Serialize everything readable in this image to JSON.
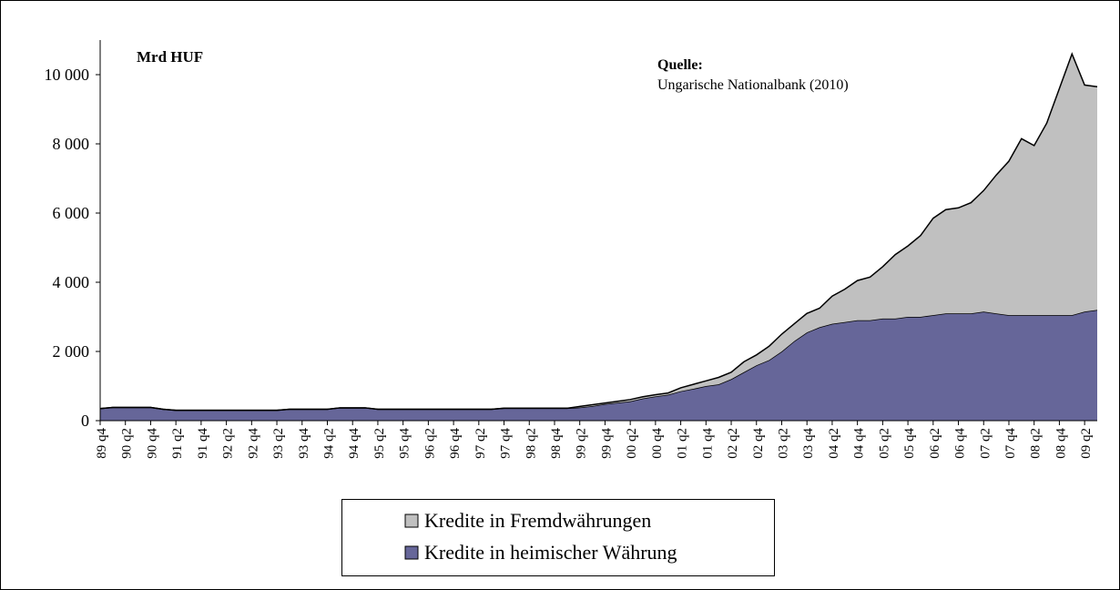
{
  "chart_data": {
    "type": "stacked_area",
    "annotations": [
      "Mrd HUF",
      "Quelle:",
      "Ungarische Nationalbank (2010)"
    ],
    "categories": [
      "89 q4",
      null,
      "90 q2",
      null,
      "90 q4",
      null,
      "91 q2",
      null,
      "91 q4",
      null,
      "92 q2",
      null,
      "92 q4",
      null,
      "93 q2",
      null,
      "93 q4",
      null,
      "94 q2",
      null,
      "94 q4",
      null,
      "95 q2",
      null,
      "95 q4",
      null,
      "96 q2",
      null,
      "96 q4",
      null,
      "97 q2",
      null,
      "97 q4",
      null,
      "98 q2",
      null,
      "98 q4",
      null,
      "99 q2",
      null,
      "99 q4",
      null,
      "00 q2",
      null,
      "00 q4",
      null,
      "01 q2",
      null,
      "01 q4",
      null,
      "02 q2",
      null,
      "02 q4",
      null,
      "03 q2",
      null,
      "03 q4",
      null,
      "04 q2",
      null,
      "04 q4",
      null,
      "05 q2",
      null,
      "05 q4",
      null,
      "06 q2",
      null,
      "06 q4",
      null,
      "07 q2",
      null,
      "07 q4",
      null,
      "08 q2",
      null,
      "08 q4",
      null,
      "09 q2",
      null
    ],
    "series": [
      {
        "name": "Kredite in heimischer Währung",
        "color": "#666699",
        "values": [
          350,
          380,
          380,
          380,
          380,
          330,
          300,
          300,
          300,
          300,
          300,
          300,
          300,
          300,
          300,
          330,
          330,
          330,
          330,
          370,
          370,
          370,
          330,
          330,
          330,
          330,
          330,
          330,
          330,
          330,
          330,
          330,
          360,
          360,
          360,
          360,
          360,
          360,
          380,
          420,
          480,
          520,
          560,
          640,
          700,
          750,
          850,
          920,
          1000,
          1050,
          1200,
          1400,
          1600,
          1750,
          2000,
          2300,
          2550,
          2700,
          2800,
          2850,
          2900,
          2900,
          2950,
          2950,
          3000,
          3000,
          3050,
          3100,
          3100,
          3100,
          3150,
          3100,
          3050,
          3050,
          3050,
          3050,
          3050,
          3050,
          3150,
          3200
        ]
      },
      {
        "name": "Kredite in Fremdwährungen",
        "color": "#c0c0c0",
        "values": [
          0,
          0,
          0,
          0,
          0,
          0,
          0,
          0,
          0,
          0,
          0,
          0,
          0,
          0,
          0,
          0,
          0,
          0,
          0,
          0,
          0,
          0,
          0,
          0,
          0,
          0,
          0,
          0,
          0,
          0,
          0,
          0,
          0,
          0,
          0,
          0,
          0,
          0,
          30,
          40,
          30,
          40,
          50,
          50,
          50,
          50,
          100,
          130,
          150,
          200,
          200,
          300,
          300,
          400,
          500,
          500,
          550,
          550,
          800,
          950,
          1150,
          1250,
          1500,
          1850,
          2050,
          2350,
          2800,
          3000,
          3050,
          3200,
          3500,
          4000,
          4450,
          5100,
          4900,
          5550,
          6550,
          7550,
          6550,
          6450
        ]
      }
    ],
    "ylim": [
      0,
      11000
    ],
    "yticks": [
      0,
      {
        "value": 2000,
        "label": "2 000"
      },
      {
        "value": 4000,
        "label": "4 000"
      },
      {
        "value": 6000,
        "label": "6 000"
      },
      {
        "value": 8000,
        "label": "8 000"
      },
      {
        "value": 10000,
        "label": "10 000"
      }
    ],
    "grid": false
  }
}
